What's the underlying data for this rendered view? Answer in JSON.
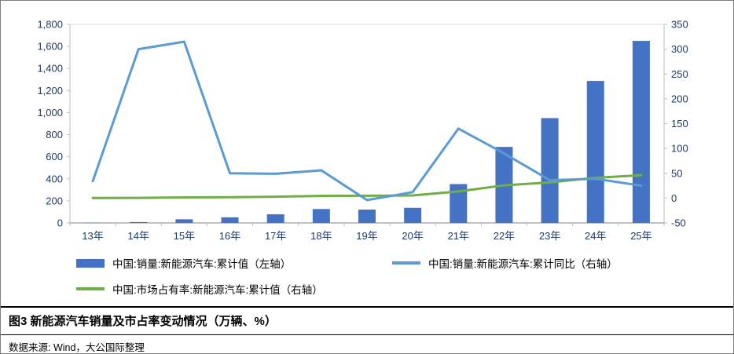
{
  "figure": {
    "caption": "图3  新能源汽车销量及市占率变动情况（万辆、%）",
    "source": "数据来源: Wind，大公国际整理"
  },
  "colors": {
    "bar": "#4472C4",
    "yoy_line": "#5B9BD5",
    "share_line": "#70AD47",
    "axis_text": "#1F3864"
  },
  "legend": [
    {
      "label": "中国:销量:新能源汽车:累计值（左轴）",
      "type": "bar",
      "color": "#4472C4"
    },
    {
      "label": "中国:销量:新能源汽车:累计同比（右轴）",
      "type": "line",
      "color": "#5B9BD5"
    },
    {
      "label": "中国:市场占有率:新能源汽车:累计值（右轴）",
      "type": "line",
      "color": "#70AD47"
    }
  ],
  "chart_data": {
    "type": "bar",
    "title": "图3  新能源汽车销量及市占率变动情况（万辆、%）",
    "categories": [
      "13年",
      "14年",
      "15年",
      "16年",
      "17年",
      "18年",
      "19年",
      "20年",
      "21年",
      "22年",
      "23年",
      "24年",
      "25年"
    ],
    "series": [
      {
        "name": "中国:销量:新能源汽车:累计值（左轴）",
        "type": "bar",
        "axis": "left",
        "color": "#4472C4",
        "values": [
          2,
          8,
          33,
          51,
          78,
          126,
          121,
          137,
          352,
          689,
          950,
          1287,
          1650
        ]
      },
      {
        "name": "中国:销量:新能源汽车:累计同比（右轴）",
        "type": "line",
        "axis": "right",
        "color": "#5B9BD5",
        "values": [
          34,
          300,
          315,
          50,
          49,
          56,
          -4,
          12,
          140,
          90,
          36,
          39,
          25
        ]
      },
      {
        "name": "中国:市场占有率:新能源汽车:累计值（右轴）",
        "type": "line",
        "axis": "right",
        "color": "#70AD47",
        "values": [
          0.1,
          0.3,
          1.4,
          1.8,
          2.7,
          4.5,
          4.7,
          5.4,
          13.4,
          25.6,
          31.6,
          41,
          46
        ]
      }
    ],
    "left_axis": {
      "min": 0,
      "max": 1800,
      "step": 200
    },
    "right_axis": {
      "min": -50,
      "max": 350,
      "step": 50
    },
    "grid": false,
    "legend_position": "bottom"
  }
}
